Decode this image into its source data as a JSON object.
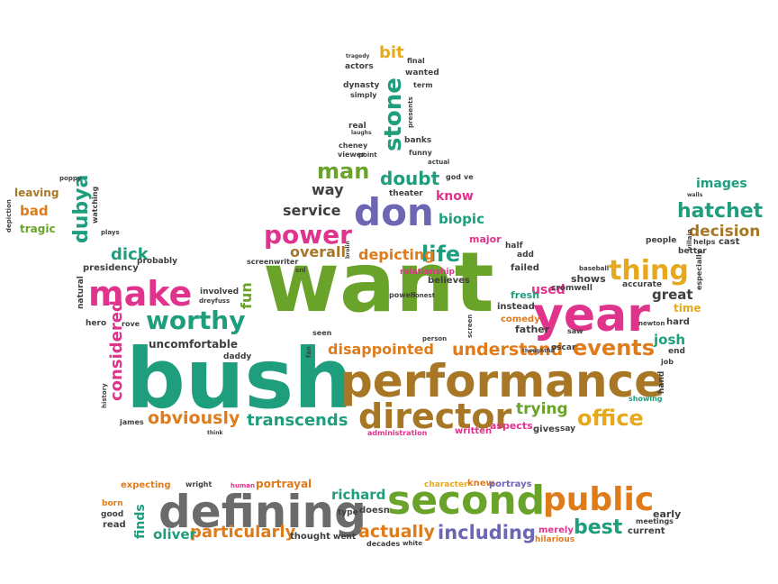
{
  "palette": {
    "green": "#6aa329",
    "teal": "#1f9e7e",
    "pink": "#e0338c",
    "orange": "#e07b1a",
    "gold": "#e6a91e",
    "brown": "#a77726",
    "purple": "#6d66b3",
    "gray": "#6b6b6b",
    "dark": "#3f3f3f"
  },
  "words": [
    {
      "text": "want",
      "color": "green"
    },
    {
      "text": "bush",
      "color": "teal"
    },
    {
      "text": "performance",
      "color": "brown"
    },
    {
      "text": "year",
      "color": "pink"
    },
    {
      "text": "make",
      "color": "pink"
    },
    {
      "text": "defining",
      "color": "gray"
    },
    {
      "text": "second",
      "color": "green"
    },
    {
      "text": "public",
      "color": "orange"
    },
    {
      "text": "director",
      "color": "brown"
    },
    {
      "text": "don",
      "color": "purple"
    },
    {
      "text": "stone",
      "color": "teal"
    },
    {
      "text": "worthy",
      "color": "teal"
    },
    {
      "text": "thing",
      "color": "gold"
    },
    {
      "text": "power",
      "color": "pink"
    },
    {
      "text": "life",
      "color": "teal"
    },
    {
      "text": "hatchet",
      "color": "teal"
    },
    {
      "text": "events",
      "color": "orange"
    },
    {
      "text": "office",
      "color": "gold"
    },
    {
      "text": "best",
      "color": "teal"
    },
    {
      "text": "including",
      "color": "purple"
    },
    {
      "text": "actually",
      "color": "orange"
    },
    {
      "text": "understand",
      "color": "orange"
    },
    {
      "text": "obviously",
      "color": "orange"
    },
    {
      "text": "transcends",
      "color": "teal"
    },
    {
      "text": "particularly",
      "color": "orange"
    },
    {
      "text": "dubya",
      "color": "teal"
    },
    {
      "text": "considered",
      "color": "pink"
    },
    {
      "text": "doubt",
      "color": "teal"
    },
    {
      "text": "man",
      "color": "green"
    },
    {
      "text": "dick",
      "color": "teal"
    },
    {
      "text": "decision",
      "color": "brown"
    },
    {
      "text": "images",
      "color": "teal"
    },
    {
      "text": "trying",
      "color": "green"
    },
    {
      "text": "fun",
      "color": "green"
    },
    {
      "text": "disappointed",
      "color": "orange"
    },
    {
      "text": "depicting",
      "color": "orange"
    },
    {
      "text": "overall",
      "color": "brown"
    },
    {
      "text": "service",
      "color": "dark"
    },
    {
      "text": "way",
      "color": "dark"
    },
    {
      "text": "biopic",
      "color": "teal"
    },
    {
      "text": "know",
      "color": "pink"
    },
    {
      "text": "richard",
      "color": "teal"
    },
    {
      "text": "oliver",
      "color": "teal"
    },
    {
      "text": "josh",
      "color": "teal"
    },
    {
      "text": "great",
      "color": "dark"
    },
    {
      "text": "used",
      "color": "pink"
    },
    {
      "text": "bit",
      "color": "gold"
    },
    {
      "text": "bad",
      "color": "orange"
    },
    {
      "text": "tragic",
      "color": "green"
    },
    {
      "text": "leaving",
      "color": "brown"
    },
    {
      "text": "uncomfortable",
      "color": "dark"
    },
    {
      "text": "finds",
      "color": "teal"
    },
    {
      "text": "time",
      "color": "gold"
    },
    {
      "text": "portrayal",
      "color": "orange"
    },
    {
      "text": "major",
      "color": "pink"
    },
    {
      "text": "aspects",
      "color": "pink"
    },
    {
      "text": "gives",
      "color": "dark"
    },
    {
      "text": "shows",
      "color": "dark"
    },
    {
      "text": "father",
      "color": "dark"
    },
    {
      "text": "comedy",
      "color": "orange"
    },
    {
      "text": "instead",
      "color": "dark"
    },
    {
      "text": "fresh",
      "color": "teal"
    },
    {
      "text": "hilarious",
      "color": "orange"
    },
    {
      "text": "merely",
      "color": "pink"
    },
    {
      "text": "current",
      "color": "dark"
    },
    {
      "text": "early",
      "color": "dark"
    },
    {
      "text": "meetings",
      "color": "dark"
    },
    {
      "text": "good",
      "color": "dark"
    },
    {
      "text": "read",
      "color": "dark"
    },
    {
      "text": "born",
      "color": "orange"
    },
    {
      "text": "expecting",
      "color": "orange"
    },
    {
      "text": "wright",
      "color": "dark"
    },
    {
      "text": "human",
      "color": "pink"
    },
    {
      "text": "type",
      "color": "dark"
    },
    {
      "text": "doesn",
      "color": "dark"
    },
    {
      "text": "thought",
      "color": "dark"
    },
    {
      "text": "went",
      "color": "dark"
    },
    {
      "text": "decades",
      "color": "dark"
    },
    {
      "text": "white",
      "color": "dark"
    },
    {
      "text": "character",
      "color": "gold"
    },
    {
      "text": "knew",
      "color": "orange"
    },
    {
      "text": "portrays",
      "color": "purple"
    },
    {
      "text": "written",
      "color": "pink"
    },
    {
      "text": "administration",
      "color": "pink"
    },
    {
      "text": "say",
      "color": "dark"
    },
    {
      "text": "showing",
      "color": "teal"
    },
    {
      "text": "hand",
      "color": "dark"
    },
    {
      "text": "job",
      "color": "dark"
    },
    {
      "text": "end",
      "color": "dark"
    },
    {
      "text": "newton",
      "color": "dark"
    },
    {
      "text": "hard",
      "color": "dark"
    },
    {
      "text": "accurate",
      "color": "dark"
    },
    {
      "text": "baseball",
      "color": "dark"
    },
    {
      "text": "especially",
      "color": "dark"
    },
    {
      "text": "helps",
      "color": "dark"
    },
    {
      "text": "cast",
      "color": "dark"
    },
    {
      "text": "better",
      "color": "dark"
    },
    {
      "text": "people",
      "color": "dark"
    },
    {
      "text": "villain",
      "color": "dark"
    },
    {
      "text": "walls",
      "color": "dark"
    },
    {
      "text": "saw",
      "color": "dark"
    },
    {
      "text": "oscar",
      "color": "dark"
    },
    {
      "text": "cromwell",
      "color": "dark"
    },
    {
      "text": "thoughtful",
      "color": "dark"
    },
    {
      "text": "failed",
      "color": "dark"
    },
    {
      "text": "add",
      "color": "dark"
    },
    {
      "text": "half",
      "color": "dark"
    },
    {
      "text": "believes",
      "color": "dark"
    },
    {
      "text": "relationship",
      "color": "pink"
    },
    {
      "text": "person",
      "color": "dark"
    },
    {
      "text": "screen",
      "color": "dark"
    },
    {
      "text": "seen",
      "color": "dark"
    },
    {
      "text": "daddy",
      "color": "dark"
    },
    {
      "text": "rove",
      "color": "dark"
    },
    {
      "text": "hero",
      "color": "dark"
    },
    {
      "text": "history",
      "color": "dark"
    },
    {
      "text": "james",
      "color": "dark"
    },
    {
      "text": "think",
      "color": "dark"
    },
    {
      "text": "natural",
      "color": "dark"
    },
    {
      "text": "presidency",
      "color": "dark"
    },
    {
      "text": "probably",
      "color": "dark"
    },
    {
      "text": "involved",
      "color": "dark"
    },
    {
      "text": "dreyfuss",
      "color": "dark"
    },
    {
      "text": "screenwriter",
      "color": "dark"
    },
    {
      "text": "snl",
      "color": "dark"
    },
    {
      "text": "brolin",
      "color": "dark"
    },
    {
      "text": "fan",
      "color": "dark"
    },
    {
      "text": "depiction",
      "color": "dark"
    },
    {
      "text": "poppy",
      "color": "dark"
    },
    {
      "text": "watching",
      "color": "dark"
    },
    {
      "text": "plays",
      "color": "dark"
    },
    {
      "text": "theater",
      "color": "dark"
    },
    {
      "text": "god",
      "color": "dark"
    },
    {
      "text": "ve",
      "color": "dark"
    },
    {
      "text": "actual",
      "color": "dark"
    },
    {
      "text": "funny",
      "color": "dark"
    },
    {
      "text": "banks",
      "color": "dark"
    },
    {
      "text": "viewer",
      "color": "dark"
    },
    {
      "text": "point",
      "color": "dark"
    },
    {
      "text": "cheney",
      "color": "dark"
    },
    {
      "text": "laughs",
      "color": "dark"
    },
    {
      "text": "real",
      "color": "dark"
    },
    {
      "text": "presents",
      "color": "dark"
    },
    {
      "text": "simply",
      "color": "dark"
    },
    {
      "text": "term",
      "color": "dark"
    },
    {
      "text": "dynasty",
      "color": "dark"
    },
    {
      "text": "wanted",
      "color": "dark"
    },
    {
      "text": "actors",
      "color": "dark"
    },
    {
      "text": "final",
      "color": "dark"
    },
    {
      "text": "tragedy",
      "color": "dark"
    },
    {
      "text": "powell",
      "color": "dark"
    },
    {
      "text": "honest",
      "color": "dark"
    }
  ]
}
